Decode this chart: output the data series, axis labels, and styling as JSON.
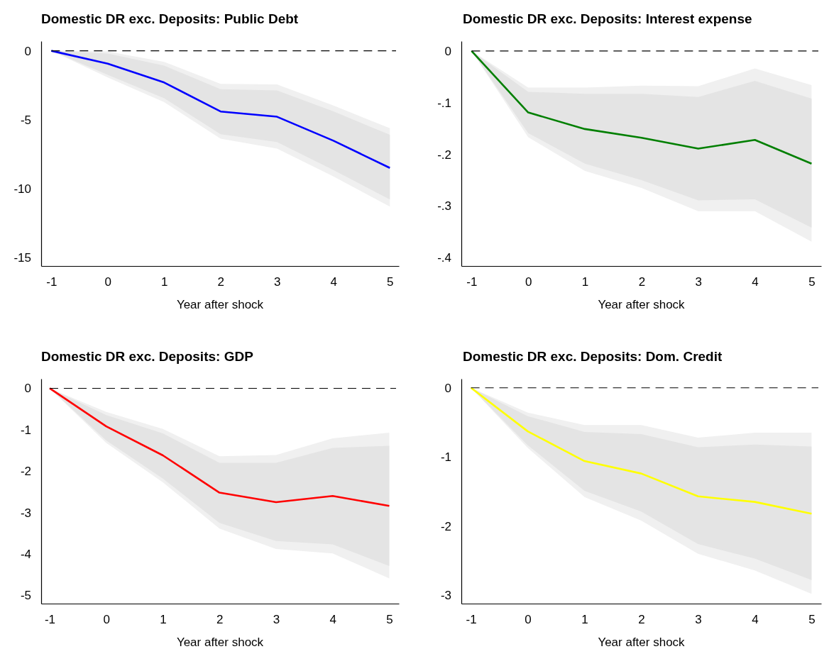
{
  "chart_data": [
    {
      "type": "line",
      "title": "Domestic DR exc. Deposits: Public Debt",
      "xlabel": "Year after shock",
      "x": [
        -1,
        0,
        1,
        2,
        3,
        4,
        5
      ],
      "xlim": [
        -1.18,
        5.16
      ],
      "xticks": [
        -1,
        0,
        1,
        2,
        3,
        4,
        5
      ],
      "ylim": [
        -15.6,
        0.7
      ],
      "yticks": [
        0,
        -5,
        -10,
        -15
      ],
      "ref_lines": [
        {
          "axis": "y",
          "value": 0,
          "color": "#000000",
          "line_style": "dashed"
        }
      ],
      "series": [
        {
          "color": "#f0f0f0",
          "values": [
            null,
            null,
            null,
            null,
            null,
            null,
            null
          ],
          "upper": [
            0,
            -0.05,
            -0.8,
            -2.4,
            -2.44,
            -3.97,
            -5.61
          ],
          "lower": [
            0,
            -1.93,
            -3.72,
            -6.37,
            -7.09,
            -9.11,
            -11.29
          ]
        },
        {
          "color": "#e4e4e4",
          "values": [
            null,
            null,
            null,
            null,
            null,
            null,
            null
          ],
          "upper": [
            0,
            -0.2,
            -1.08,
            -2.78,
            -2.87,
            -4.39,
            -6.09
          ],
          "lower": [
            0,
            -1.74,
            -3.44,
            -6.05,
            -6.62,
            -8.64,
            -10.78
          ]
        },
        {
          "color": "#0000ff",
          "values": [
            0,
            -0.93,
            -2.3,
            -4.4,
            -4.78,
            -6.52,
            -8.49
          ]
        }
      ]
    },
    {
      "type": "line",
      "title": "Domestic DR exc. Deposits: Interest expense",
      "xlabel": "Year after shock",
      "x": [
        -1,
        0,
        1,
        2,
        3,
        4,
        5
      ],
      "xlim": [
        -1.18,
        5.17
      ],
      "xticks": [
        -1,
        0,
        1,
        2,
        3,
        4,
        5
      ],
      "ylim": [
        -0.416,
        0.019
      ],
      "yticks": [
        0,
        {
          "value": -0.1,
          "label": "-.1"
        },
        {
          "value": -0.2,
          "label": "-.2"
        },
        {
          "value": -0.3,
          "label": "-.3"
        },
        {
          "value": -0.4,
          "label": "-.4"
        }
      ],
      "ref_lines": [
        {
          "axis": "y",
          "value": 0,
          "color": "#000000",
          "line_style": "dashed"
        }
      ],
      "series": [
        {
          "color": "#f0f0f0",
          "values": [
            null,
            null,
            null,
            null,
            null,
            null,
            null
          ],
          "upper": [
            0,
            -0.071,
            -0.071,
            -0.067,
            -0.068,
            -0.034,
            -0.066
          ],
          "lower": [
            0,
            -0.167,
            -0.232,
            -0.265,
            -0.31,
            -0.31,
            -0.369
          ]
        },
        {
          "color": "#e4e4e4",
          "values": [
            null,
            null,
            null,
            null,
            null,
            null,
            null
          ],
          "upper": [
            0,
            -0.079,
            -0.083,
            -0.083,
            -0.089,
            -0.058,
            -0.092
          ],
          "lower": [
            0,
            -0.159,
            -0.218,
            -0.25,
            -0.289,
            -0.287,
            -0.342
          ]
        },
        {
          "color": "#007f00",
          "values": [
            0,
            -0.119,
            -0.151,
            -0.168,
            -0.189,
            -0.172,
            -0.218
          ]
        }
      ]
    },
    {
      "type": "line",
      "title": "Domestic DR exc. Deposits: GDP",
      "xlabel": "Year after shock",
      "x": [
        -1,
        0,
        1,
        2,
        3,
        4,
        5
      ],
      "xlim": [
        -1.15,
        5.17
      ],
      "xticks": [
        -1,
        0,
        1,
        2,
        3,
        4,
        5
      ],
      "ylim": [
        -5.2,
        0.23
      ],
      "yticks": [
        0,
        -1,
        -2,
        -3,
        -4,
        -5
      ],
      "ref_lines": [
        {
          "axis": "y",
          "value": 0,
          "color": "#000000",
          "line_style": "dashed"
        }
      ],
      "series": [
        {
          "color": "#f0f0f0",
          "values": [
            null,
            null,
            null,
            null,
            null,
            null,
            null
          ],
          "upper": [
            0,
            -0.57,
            -0.98,
            -1.64,
            -1.61,
            -1.21,
            -1.07
          ],
          "lower": [
            0,
            -1.32,
            -2.27,
            -3.39,
            -3.88,
            -3.99,
            -4.59
          ]
        },
        {
          "color": "#e4e4e4",
          "values": [
            null,
            null,
            null,
            null,
            null,
            null,
            null
          ],
          "upper": [
            0,
            -0.65,
            -1.09,
            -1.8,
            -1.8,
            -1.44,
            -1.39
          ],
          "lower": [
            0,
            -1.26,
            -2.18,
            -3.25,
            -3.69,
            -3.77,
            -4.29
          ]
        },
        {
          "color": "#ff0000",
          "values": [
            0,
            -0.92,
            -1.62,
            -2.52,
            -2.75,
            -2.6,
            -2.84
          ]
        }
      ]
    },
    {
      "type": "line",
      "title": "Domestic DR exc. Deposits: Dom. Credit",
      "xlabel": "Year after shock",
      "x": [
        -1,
        0,
        1,
        2,
        3,
        4,
        5
      ],
      "xlim": [
        -1.17,
        5.17
      ],
      "xticks": [
        -1,
        0,
        1,
        2,
        3,
        4,
        5
      ],
      "ylim": [
        -3.12,
        0.13
      ],
      "yticks": [
        0,
        -1,
        -2,
        -3
      ],
      "ref_lines": [
        {
          "axis": "y",
          "value": 0,
          "color": "#000000",
          "line_style": "dashed"
        }
      ],
      "series": [
        {
          "color": "#f0f0f0",
          "values": [
            null,
            null,
            null,
            null,
            null,
            null,
            null
          ],
          "upper": [
            0,
            -0.36,
            -0.54,
            -0.54,
            -0.72,
            -0.65,
            -0.65
          ],
          "lower": [
            0,
            -0.87,
            -1.58,
            -1.92,
            -2.4,
            -2.64,
            -2.98
          ]
        },
        {
          "color": "#e4e4e4",
          "values": [
            null,
            null,
            null,
            null,
            null,
            null,
            null
          ],
          "upper": [
            0,
            -0.41,
            -0.64,
            -0.67,
            -0.86,
            -0.82,
            -0.85
          ],
          "lower": [
            0,
            -0.83,
            -1.49,
            -1.79,
            -2.26,
            -2.47,
            -2.78
          ]
        },
        {
          "color": "#ffff00",
          "values": [
            0,
            -0.63,
            -1.06,
            -1.24,
            -1.57,
            -1.65,
            -1.82
          ]
        }
      ]
    }
  ]
}
